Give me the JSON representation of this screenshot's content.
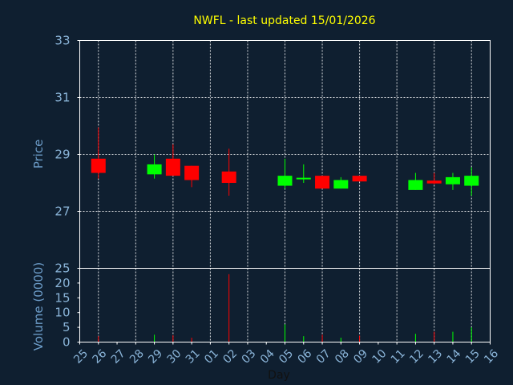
{
  "chart_data": {
    "type": "candlestick",
    "title": "NWFL - last updated 15/01/2026",
    "xlabel": "Day",
    "price_panel": {
      "ylabel": "Price",
      "ylim": [
        25,
        33
      ],
      "yticks": [
        "25",
        "27",
        "29",
        "31",
        "33"
      ]
    },
    "volume_panel": {
      "ylabel": "Volume (0000)",
      "ylim": [
        0,
        25
      ],
      "yticks": [
        "0",
        "5",
        "10",
        "15",
        "20",
        "25"
      ]
    },
    "x_tick_labels": [
      "25",
      "26",
      "27",
      "28",
      "29",
      "30",
      "31",
      "01",
      "02",
      "03",
      "04",
      "05",
      "06",
      "07",
      "08",
      "09",
      "10",
      "11",
      "12",
      "13",
      "14",
      "15",
      "16"
    ],
    "colors": {
      "up": "#00ff00",
      "down": "#ff0000",
      "background": "#0f1f30",
      "title": "#ffff00",
      "tick": "#8ab4d8"
    },
    "candles": [
      {
        "day": "26",
        "open": 28.85,
        "high": 29.95,
        "low": 28.15,
        "close": 28.35,
        "volume": 2.0
      },
      {
        "day": "29",
        "open": 28.3,
        "high": 29.0,
        "low": 28.15,
        "close": 28.65,
        "volume": 2.5
      },
      {
        "day": "30",
        "open": 28.85,
        "high": 29.35,
        "low": 28.25,
        "close": 28.25,
        "volume": 2.3
      },
      {
        "day": "31",
        "open": 28.6,
        "high": 28.6,
        "low": 27.85,
        "close": 28.1,
        "volume": 1.5
      },
      {
        "day": "02",
        "open": 28.4,
        "high": 29.2,
        "low": 27.55,
        "close": 28.0,
        "volume": 23.0
      },
      {
        "day": "05",
        "open": 27.9,
        "high": 28.85,
        "low": 27.8,
        "close": 28.25,
        "volume": 6.0
      },
      {
        "day": "06",
        "open": 28.15,
        "high": 28.65,
        "low": 28.0,
        "close": 28.18,
        "volume": 2.0
      },
      {
        "day": "07",
        "open": 28.25,
        "high": 28.25,
        "low": 27.8,
        "close": 27.8,
        "volume": 2.5
      },
      {
        "day": "08",
        "open": 27.8,
        "high": 28.2,
        "low": 27.8,
        "close": 28.1,
        "volume": 1.5
      },
      {
        "day": "09",
        "open": 28.25,
        "high": 28.25,
        "low": 28.05,
        "close": 28.05,
        "volume": 2.2
      },
      {
        "day": "12",
        "open": 27.75,
        "high": 28.35,
        "low": 27.75,
        "close": 28.1,
        "volume": 2.8
      },
      {
        "day": "13",
        "open": 28.08,
        "high": 28.35,
        "low": 27.95,
        "close": 27.98,
        "volume": 3.5
      },
      {
        "day": "14",
        "open": 27.95,
        "high": 28.35,
        "low": 27.75,
        "close": 28.2,
        "volume": 3.5
      },
      {
        "day": "15",
        "open": 27.9,
        "high": 28.55,
        "low": 27.55,
        "close": 28.25,
        "volume": 5.0
      }
    ]
  }
}
